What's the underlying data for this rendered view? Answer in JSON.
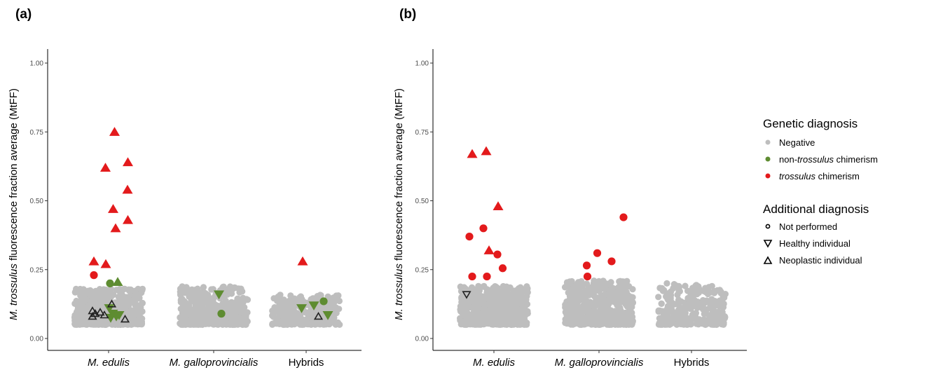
{
  "chart_data": [
    {
      "panel": "(a)",
      "type": "scatter",
      "categories": [
        "M. edulis",
        "M. galloprovincialis",
        "Hybrids"
      ],
      "ylabel_italic": "M. trossulus",
      "ylabel_rest": " fluorescence fraction average (MtFF)",
      "ylim": [
        0,
        1.0
      ],
      "yticks": [
        "0.00",
        "0.25",
        "0.50",
        "0.75",
        "1.00"
      ],
      "negative_cloud": [
        {
          "category": "M. edulis",
          "count": 520,
          "ymin": 0.05,
          "ymax": 0.18
        },
        {
          "category": "M. galloprovincialis",
          "count": 430,
          "ymin": 0.05,
          "ymax": 0.19
        },
        {
          "category": "Hybrids",
          "count": 280,
          "ymin": 0.05,
          "ymax": 0.16
        }
      ],
      "points": [
        {
          "category": "M. edulis",
          "jitter": -0.42,
          "y": 0.28,
          "diagnosis": "trossulus",
          "additional": "neoplastic"
        },
        {
          "category": "M. edulis",
          "jitter": -0.42,
          "y": 0.23,
          "diagnosis": "trossulus",
          "additional": "not_performed"
        },
        {
          "category": "M. edulis",
          "jitter": -0.08,
          "y": 0.27,
          "diagnosis": "trossulus",
          "additional": "neoplastic"
        },
        {
          "category": "M. edulis",
          "jitter": -0.09,
          "y": 0.62,
          "diagnosis": "trossulus",
          "additional": "neoplastic"
        },
        {
          "category": "M. edulis",
          "jitter": 0.13,
          "y": 0.47,
          "diagnosis": "trossulus",
          "additional": "neoplastic"
        },
        {
          "category": "M. edulis",
          "jitter": 0.17,
          "y": 0.75,
          "diagnosis": "trossulus",
          "additional": "neoplastic"
        },
        {
          "category": "M. edulis",
          "jitter": 0.2,
          "y": 0.4,
          "diagnosis": "trossulus",
          "additional": "neoplastic"
        },
        {
          "category": "M. edulis",
          "jitter": 0.55,
          "y": 0.64,
          "diagnosis": "trossulus",
          "additional": "neoplastic"
        },
        {
          "category": "M. edulis",
          "jitter": 0.54,
          "y": 0.54,
          "diagnosis": "trossulus",
          "additional": "neoplastic"
        },
        {
          "category": "M. edulis",
          "jitter": 0.55,
          "y": 0.43,
          "diagnosis": "trossulus",
          "additional": "neoplastic"
        },
        {
          "category": "M. edulis",
          "jitter": 0.04,
          "y": 0.2,
          "diagnosis": "non-trossulus",
          "additional": "not_performed"
        },
        {
          "category": "M. edulis",
          "jitter": 0.26,
          "y": 0.205,
          "diagnosis": "non-trossulus",
          "additional": "neoplastic"
        },
        {
          "category": "M. edulis",
          "jitter": 0.02,
          "y": 0.11,
          "diagnosis": "non-trossulus",
          "additional": "healthy"
        },
        {
          "category": "M. edulis",
          "jitter": 0.06,
          "y": 0.075,
          "diagnosis": "non-trossulus",
          "additional": "healthy"
        },
        {
          "category": "M. edulis",
          "jitter": 0.12,
          "y": 0.09,
          "diagnosis": "non-trossulus",
          "additional": "healthy"
        },
        {
          "category": "M. edulis",
          "jitter": 0.22,
          "y": 0.08,
          "diagnosis": "non-trossulus",
          "additional": "healthy"
        },
        {
          "category": "M. edulis",
          "jitter": 0.3,
          "y": 0.085,
          "diagnosis": "non-trossulus",
          "additional": "healthy"
        },
        {
          "category": "M. edulis",
          "jitter": -0.46,
          "y": 0.1,
          "diagnosis": "negative",
          "additional": "neoplastic"
        },
        {
          "category": "M. edulis",
          "jitter": -0.46,
          "y": 0.08,
          "diagnosis": "negative",
          "additional": "neoplastic"
        },
        {
          "category": "M. edulis",
          "jitter": -0.38,
          "y": 0.09,
          "diagnosis": "negative",
          "additional": "neoplastic"
        },
        {
          "category": "M. edulis",
          "jitter": -0.24,
          "y": 0.095,
          "diagnosis": "negative",
          "additional": "neoplastic"
        },
        {
          "category": "M. edulis",
          "jitter": -0.12,
          "y": 0.085,
          "diagnosis": "negative",
          "additional": "neoplastic"
        },
        {
          "category": "M. edulis",
          "jitter": 0.09,
          "y": 0.125,
          "diagnosis": "negative",
          "additional": "neoplastic"
        },
        {
          "category": "M. edulis",
          "jitter": 0.47,
          "y": 0.07,
          "diagnosis": "negative",
          "additional": "neoplastic"
        },
        {
          "category": "M. galloprovincialis",
          "jitter": 0.15,
          "y": 0.16,
          "diagnosis": "non-trossulus",
          "additional": "healthy"
        },
        {
          "category": "M. galloprovincialis",
          "jitter": 0.22,
          "y": 0.09,
          "diagnosis": "non-trossulus",
          "additional": "not_performed"
        },
        {
          "category": "Hybrids",
          "jitter": -0.1,
          "y": 0.28,
          "diagnosis": "trossulus",
          "additional": "neoplastic"
        },
        {
          "category": "Hybrids",
          "jitter": -0.13,
          "y": 0.11,
          "diagnosis": "non-trossulus",
          "additional": "healthy"
        },
        {
          "category": "Hybrids",
          "jitter": 0.22,
          "y": 0.12,
          "diagnosis": "non-trossulus",
          "additional": "healthy"
        },
        {
          "category": "Hybrids",
          "jitter": 0.5,
          "y": 0.135,
          "diagnosis": "non-trossulus",
          "additional": "not_performed"
        },
        {
          "category": "Hybrids",
          "jitter": 0.62,
          "y": 0.085,
          "diagnosis": "non-trossulus",
          "additional": "healthy"
        },
        {
          "category": "Hybrids",
          "jitter": 0.35,
          "y": 0.08,
          "diagnosis": "negative",
          "additional": "neoplastic"
        }
      ]
    },
    {
      "panel": "(b)",
      "type": "scatter",
      "categories": [
        "M. edulis",
        "M. galloprovincialis",
        "Hybrids"
      ],
      "ylabel_italic": "M. trossulus",
      "ylabel_rest": " fluorescence fraction average (MtFF)",
      "ylim": [
        0,
        1.0
      ],
      "yticks": [
        "0.00",
        "0.25",
        "0.50",
        "0.75",
        "1.00"
      ],
      "negative_cloud": [
        {
          "category": "M. edulis",
          "count": 560,
          "ymin": 0.05,
          "ymax": 0.19
        },
        {
          "category": "M. galloprovincialis",
          "count": 560,
          "ymin": 0.05,
          "ymax": 0.21
        },
        {
          "category": "Hybrids",
          "count": 300,
          "ymin": 0.05,
          "ymax": 0.2
        }
      ],
      "points": [
        {
          "category": "M. edulis",
          "jitter": -0.62,
          "y": 0.67,
          "diagnosis": "trossulus",
          "additional": "neoplastic"
        },
        {
          "category": "M. edulis",
          "jitter": -0.22,
          "y": 0.68,
          "diagnosis": "trossulus",
          "additional": "neoplastic"
        },
        {
          "category": "M. edulis",
          "jitter": 0.12,
          "y": 0.48,
          "diagnosis": "trossulus",
          "additional": "neoplastic"
        },
        {
          "category": "M. edulis",
          "jitter": -0.14,
          "y": 0.32,
          "diagnosis": "trossulus",
          "additional": "neoplastic"
        },
        {
          "category": "M. edulis",
          "jitter": -0.7,
          "y": 0.37,
          "diagnosis": "trossulus",
          "additional": "not_performed"
        },
        {
          "category": "M. edulis",
          "jitter": -0.62,
          "y": 0.225,
          "diagnosis": "trossulus",
          "additional": "not_performed"
        },
        {
          "category": "M. edulis",
          "jitter": -0.3,
          "y": 0.4,
          "diagnosis": "trossulus",
          "additional": "not_performed"
        },
        {
          "category": "M. edulis",
          "jitter": -0.2,
          "y": 0.225,
          "diagnosis": "trossulus",
          "additional": "not_performed"
        },
        {
          "category": "M. edulis",
          "jitter": 0.1,
          "y": 0.305,
          "diagnosis": "trossulus",
          "additional": "not_performed"
        },
        {
          "category": "M. edulis",
          "jitter": 0.25,
          "y": 0.255,
          "diagnosis": "trossulus",
          "additional": "not_performed"
        },
        {
          "category": "M. edulis",
          "jitter": -0.78,
          "y": 0.16,
          "diagnosis": "negative",
          "additional": "healthy"
        },
        {
          "category": "M. galloprovincialis",
          "jitter": -0.35,
          "y": 0.265,
          "diagnosis": "trossulus",
          "additional": "not_performed"
        },
        {
          "category": "M. galloprovincialis",
          "jitter": -0.33,
          "y": 0.225,
          "diagnosis": "trossulus",
          "additional": "not_performed"
        },
        {
          "category": "M. galloprovincialis",
          "jitter": -0.05,
          "y": 0.31,
          "diagnosis": "trossulus",
          "additional": "not_performed"
        },
        {
          "category": "M. galloprovincialis",
          "jitter": 0.36,
          "y": 0.28,
          "diagnosis": "trossulus",
          "additional": "not_performed"
        },
        {
          "category": "M. galloprovincialis",
          "jitter": 0.7,
          "y": 0.44,
          "diagnosis": "trossulus",
          "additional": "not_performed"
        }
      ]
    }
  ],
  "legend": {
    "genetic_title": "Genetic diagnosis",
    "negative_label": "Negative",
    "non_trossulus_prefix": "non-",
    "non_trossulus_italic": "trossulus",
    "non_trossulus_suffix": " chimerism",
    "trossulus_italic": "trossulus",
    "trossulus_suffix": " chimerism",
    "additional_title": "Additional diagnosis",
    "not_performed_label": "Not performed",
    "healthy_label": "Healthy individual",
    "neoplastic_label": "Neoplastic individual",
    "colors": {
      "negative": "#bebebe",
      "non-trossulus": "#5e8c31",
      "trossulus": "#e31a1c"
    }
  }
}
